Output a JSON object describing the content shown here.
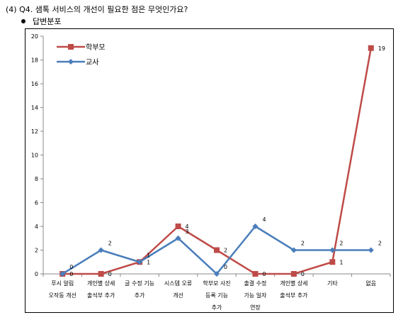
{
  "header": {
    "question": "(4) Q4. 샘톡 서비스의 개선이 필요한 점은 무엇인가요?",
    "subheading": "답변분포"
  },
  "chart_data": {
    "type": "line",
    "categories": [
      [
        "푸시 알림",
        "오작동 개선"
      ],
      [
        "개인별 상세",
        "출석부 추가"
      ],
      [
        "글 수정 기능",
        "추가"
      ],
      [
        "시스템 오류",
        "개선"
      ],
      [
        "학부모 사진",
        "등록 기능",
        "추가"
      ],
      [
        "출결 수정",
        "가능 일자",
        "연장"
      ],
      [
        "개인별 상세",
        "출석부 추가"
      ],
      [
        "기타"
      ],
      [
        "없음"
      ]
    ],
    "series": [
      {
        "name": "학부모",
        "values": [
          0,
          0,
          1,
          4,
          2,
          0,
          0,
          1,
          19
        ],
        "color": "#BE4B48",
        "marker": "square"
      },
      {
        "name": "교사",
        "values": [
          0,
          2,
          1,
          3,
          0,
          4,
          2,
          2,
          2
        ],
        "color": "#4A7EBB",
        "marker": "diamond"
      }
    ],
    "ylim": [
      0,
      20
    ],
    "yticks": [
      0,
      2,
      4,
      6,
      8,
      10,
      12,
      14,
      16,
      18,
      20
    ],
    "grid": false,
    "legend": "top-left",
    "xlabel": "",
    "ylabel": "",
    "title": ""
  }
}
